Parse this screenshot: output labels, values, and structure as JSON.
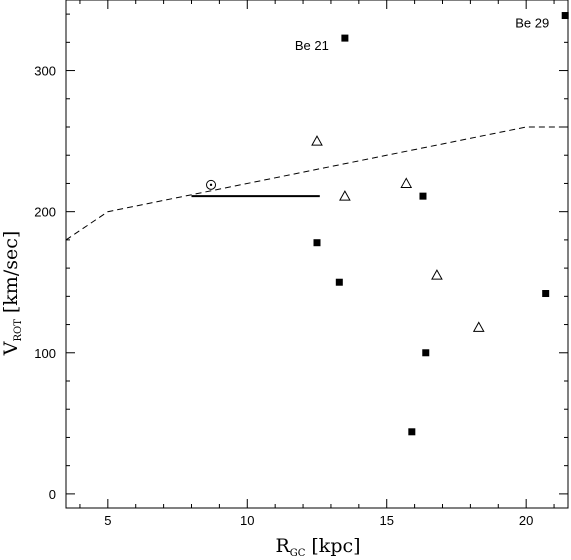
{
  "chart_data": {
    "type": "scatter",
    "title": "",
    "xlabel": {
      "main": "R",
      "subscript": "GC",
      "unit": "[kpc]"
    },
    "ylabel": {
      "main": "V",
      "subscript": "ROT",
      "unit": "[km/sec]"
    },
    "xlim": [
      3.5,
      21.5
    ],
    "ylim": [
      -10,
      350
    ],
    "x_ticks_major": [
      5,
      10,
      15,
      20
    ],
    "y_ticks_major": [
      0,
      100,
      200,
      300
    ],
    "x_ticks_minor_step": 1,
    "y_ticks_minor_step": 20,
    "grid": false,
    "legend": "none",
    "series": [
      {
        "marker": "filled-square",
        "points": [
          {
            "x": 13.5,
            "y": 323
          },
          {
            "x": 21.4,
            "y": 339
          },
          {
            "x": 16.3,
            "y": 211
          },
          {
            "x": 12.5,
            "y": 178
          },
          {
            "x": 13.3,
            "y": 150
          },
          {
            "x": 20.7,
            "y": 142
          },
          {
            "x": 16.4,
            "y": 100
          },
          {
            "x": 15.9,
            "y": 44
          }
        ]
      },
      {
        "marker": "open-triangle",
        "points": [
          {
            "x": 12.5,
            "y": 250
          },
          {
            "x": 15.7,
            "y": 220
          },
          {
            "x": 13.5,
            "y": 211
          },
          {
            "x": 16.8,
            "y": 155
          },
          {
            "x": 18.3,
            "y": 118
          }
        ]
      },
      {
        "marker": "sun-symbol",
        "points": [
          {
            "x": 8.7,
            "y": 219
          }
        ]
      },
      {
        "line_style": "solid",
        "points": [
          {
            "x": 8.0,
            "y": 211
          },
          {
            "x": 12.6,
            "y": 211
          }
        ]
      },
      {
        "line_style": "dashed",
        "points": [
          {
            "x": 3.5,
            "y": 180
          },
          {
            "x": 5.0,
            "y": 200
          },
          {
            "x": 20.0,
            "y": 260
          },
          {
            "x": 21.5,
            "y": 260
          }
        ]
      }
    ],
    "annotations": [
      {
        "text": "Be 21",
        "x": 13.5,
        "y": 323,
        "position": "left-below"
      },
      {
        "text": "Be 29",
        "x": 21.4,
        "y": 339,
        "position": "left-below"
      }
    ]
  }
}
